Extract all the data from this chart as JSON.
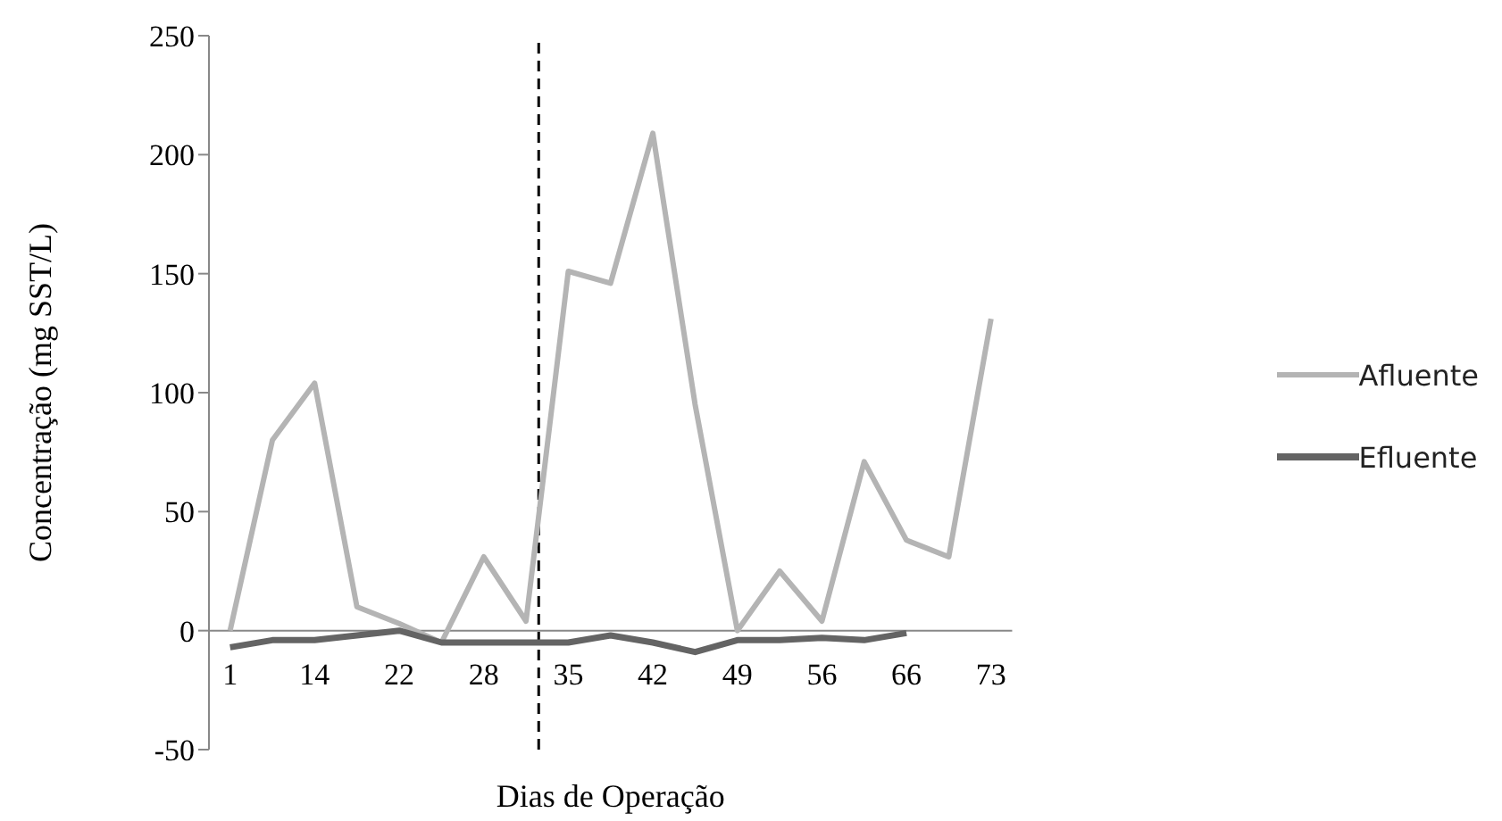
{
  "chart_data": {
    "type": "line",
    "xlabel": "Dias de Operação",
    "ylabel": "Concentração (mg SST/L)",
    "categories": [
      "1",
      null,
      "14",
      null,
      "22",
      null,
      "28",
      null,
      "35",
      null,
      "42",
      null,
      "49",
      null,
      "56",
      null,
      "66",
      null,
      "73"
    ],
    "series": [
      {
        "name": "Afluente",
        "color": "#b4b4b4",
        "values": [
          0,
          80,
          104,
          10,
          3,
          -5,
          31,
          4,
          151,
          146,
          209,
          95,
          0,
          25,
          4,
          71,
          38,
          31,
          131
        ]
      },
      {
        "name": "Efluente",
        "color": "#646464",
        "values": [
          -7,
          -4,
          -4,
          -2,
          0,
          -5,
          -5,
          -5,
          -5,
          -2,
          -5,
          -9,
          -4,
          -4,
          -3,
          -4,
          -1,
          null,
          null
        ]
      }
    ],
    "ylim": [
      -50,
      250
    ],
    "yticks": [
      -50,
      0,
      50,
      100,
      150,
      200,
      250
    ],
    "grid": false,
    "legend": "right",
    "marker": "none",
    "line_style": "solid"
  }
}
